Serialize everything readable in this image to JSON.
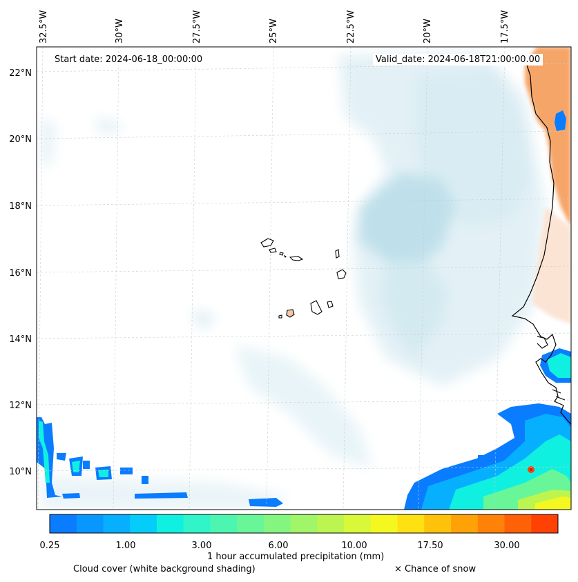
{
  "map": {
    "start_date": "Start date: 2024-06-18_00:00:00",
    "valid_date": "Valid_date: 2024-06-18T21:00:00.00",
    "lon_labels": [
      "32.5°W",
      "30°W",
      "27.5°W",
      "25°W",
      "22.5°W",
      "20°W",
      "17.5°W"
    ],
    "lat_labels": [
      "22°N",
      "20°N",
      "18°N",
      "16°N",
      "14°N",
      "12°N",
      "10°N"
    ]
  },
  "legend": {
    "title": "1 hour accumulated precipitation (mm)",
    "tick_labels": [
      "0.25",
      "1.00",
      "3.00",
      "6.00",
      "10.00",
      "17.50",
      "30.00"
    ],
    "colors": [
      "#0a7cff",
      "#0896ff",
      "#06b0ff",
      "#04cdfa",
      "#10f0e0",
      "#2ff5c8",
      "#4cf6b0",
      "#68f698",
      "#84f680",
      "#a0f568",
      "#bcf550",
      "#d8f838",
      "#f4f820",
      "#ffe012",
      "#ffc20a",
      "#ffa208",
      "#ff8208",
      "#ff6206",
      "#ff4204"
    ],
    "cloud_note": "Cloud cover (white background shading)",
    "snow_note": "× Chance of snow"
  }
}
